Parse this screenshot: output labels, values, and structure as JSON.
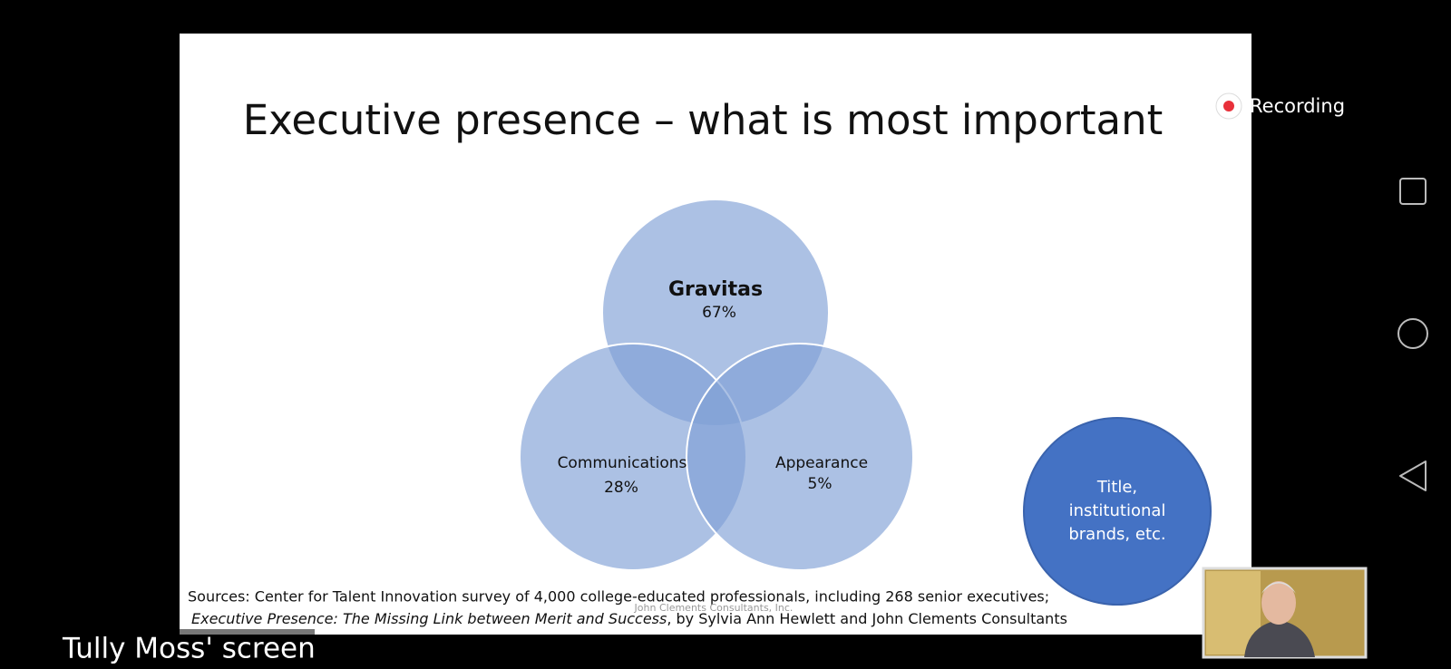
{
  "slide": {
    "title": "Executive presence – what is most important",
    "circles": [
      {
        "label": "Gravitas",
        "value": "67%"
      },
      {
        "label": "Communications",
        "value": "28%"
      },
      {
        "label": "Appearance",
        "value": "5%"
      }
    ],
    "side_circle": {
      "lines": [
        "Title,",
        "institutional",
        "brands, etc."
      ]
    },
    "sources": {
      "line1": "Sources:  Center for Talent Innovation survey of 4,000 college-educated professionals, including 268 senior executives;",
      "line2_italic": "Executive Presence: The Missing Link between Merit and Success",
      "line2_rest": ", by Sylvia Ann Hewlett and John Clements Consultants"
    },
    "watermark": "John Clements Consultants, Inc."
  },
  "overlay": {
    "recording": "Recording",
    "screen_label": "Tully Moss' screen"
  }
}
